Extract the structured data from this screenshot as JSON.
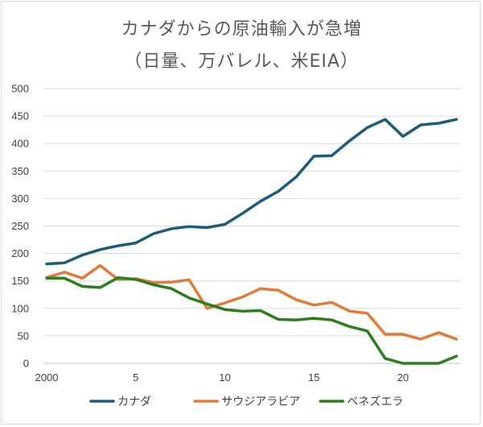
{
  "chart_data": {
    "type": "line",
    "title": "カナダからの原油輸入が急増",
    "subtitle": "（日量、万バレル、米EIA）",
    "xlabel": "",
    "ylabel": "",
    "x": [
      2000,
      2001,
      2002,
      2003,
      2004,
      2005,
      2006,
      2007,
      2008,
      2009,
      2010,
      2011,
      2012,
      2013,
      2014,
      2015,
      2016,
      2017,
      2018,
      2019,
      2020,
      2021,
      2022,
      2023
    ],
    "xticks": [
      2000,
      2005,
      2010,
      2015,
      2020
    ],
    "xtick_labels": [
      "2000",
      "5",
      "10",
      "15",
      "20"
    ],
    "ylim": [
      0,
      500
    ],
    "yticks": [
      0,
      50,
      100,
      150,
      200,
      250,
      300,
      350,
      400,
      450,
      500
    ],
    "grid": true,
    "legend_position": "bottom",
    "series": [
      {
        "name": "カナダ",
        "color": "#1f5c78",
        "values": [
          181,
          183,
          197,
          207,
          214,
          219,
          236,
          245,
          249,
          247,
          253,
          273,
          295,
          313,
          339,
          377,
          378,
          405,
          429,
          444,
          413,
          434,
          437,
          444
        ]
      },
      {
        "name": "サウジアラビア",
        "color": "#e07b39",
        "values": [
          156,
          166,
          155,
          178,
          153,
          154,
          147,
          148,
          152,
          100,
          110,
          121,
          136,
          133,
          116,
          106,
          111,
          95,
          91,
          53,
          53,
          44,
          56,
          44
        ]
      },
      {
        "name": "ベネズエラ",
        "color": "#2e7d1f",
        "values": [
          155,
          155,
          140,
          138,
          156,
          153,
          143,
          136,
          119,
          108,
          98,
          95,
          96,
          80,
          79,
          82,
          79,
          67,
          59,
          9,
          0,
          0,
          0,
          13
        ]
      }
    ]
  }
}
